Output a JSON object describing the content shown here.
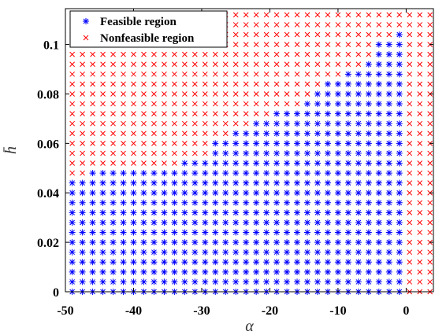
{
  "chart_data": {
    "type": "scatter",
    "xlabel": "α",
    "ylabel": "h̄",
    "xlim": [
      -50,
      4
    ],
    "ylim": [
      0,
      0.1145
    ],
    "x_ticks": [
      -50,
      -40,
      -30,
      -20,
      -10,
      0
    ],
    "x_tick_labels": [
      "-50",
      "-40",
      "-30",
      "-20",
      "-10",
      "0"
    ],
    "y_ticks": [
      0,
      0.02,
      0.04,
      0.06,
      0.08,
      0.1
    ],
    "y_tick_labels": [
      "0",
      "0.02",
      "0.04",
      "0.06",
      "0.08",
      "0.1"
    ],
    "grid": false,
    "legend_position": "top-left",
    "grid_x": {
      "start": -49,
      "step": 1.5,
      "count": 36
    },
    "grid_y": {
      "start": 0,
      "step": 0.004,
      "count": 29
    },
    "series": [
      {
        "name": "Feasible region",
        "marker": "asterisk",
        "color": "#0000ff",
        "region_upper_h": [
          {
            "x_max": -47.5,
            "h": 0.044
          },
          {
            "x_max": -34,
            "h": 0.048
          },
          {
            "x_max": -29.5,
            "h": 0.052
          },
          {
            "x_max": -26.5,
            "h": 0.06
          },
          {
            "x_max": -23.5,
            "h": 0.064
          },
          {
            "x_max": -20.5,
            "h": 0.068
          },
          {
            "x_max": -16,
            "h": 0.072
          },
          {
            "x_max": -14.5,
            "h": 0.076
          },
          {
            "x_max": -13,
            "h": 0.08
          },
          {
            "x_max": -10,
            "h": 0.084
          },
          {
            "x_max": -7,
            "h": 0.088
          },
          {
            "x_max": -5.5,
            "h": 0.092
          },
          {
            "x_max": -2.5,
            "h": 0.1
          },
          {
            "x_max": -1,
            "h": 0.104
          }
        ]
      },
      {
        "name": "Nonfeasible region",
        "marker": "x",
        "color": "#ff0000"
      }
    ]
  },
  "colors": {
    "feasible": "#0000ff",
    "nonfeasible": "#ff0000",
    "axis": "#000000"
  }
}
